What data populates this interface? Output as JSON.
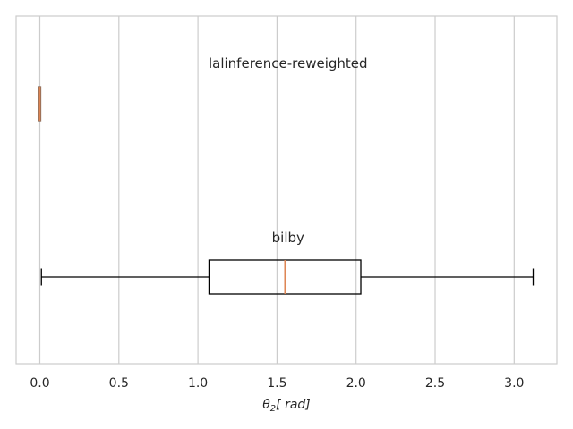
{
  "chart_data": {
    "type": "boxplot",
    "orientation": "horizontal",
    "title": "",
    "xlabel": "θ₂[ rad]",
    "ylabel": "",
    "xlim": [
      -0.15,
      3.27
    ],
    "xticks": [
      0.0,
      0.5,
      1.0,
      1.5,
      2.0,
      2.5,
      3.0
    ],
    "xtick_labels": [
      "0.0",
      "0.5",
      "1.0",
      "1.5",
      "2.0",
      "2.5",
      "3.0"
    ],
    "grid": "x-axis vertical lines",
    "series": [
      {
        "name": "lalinference-reweighted",
        "whisker_low": 0.0,
        "q1": 0.0,
        "median": 0.0,
        "q3": 0.0,
        "whisker_high": 0.0,
        "annotation_x": 1.57
      },
      {
        "name": "bilby",
        "whisker_low": 0.01,
        "q1": 1.07,
        "median": 1.55,
        "q3": 2.03,
        "whisker_high": 3.12,
        "annotation_x": 1.57
      }
    ],
    "colors": {
      "box": "#000000",
      "median": "#dd8452",
      "grid": "#cccccc",
      "frame": "#cccccc"
    }
  }
}
